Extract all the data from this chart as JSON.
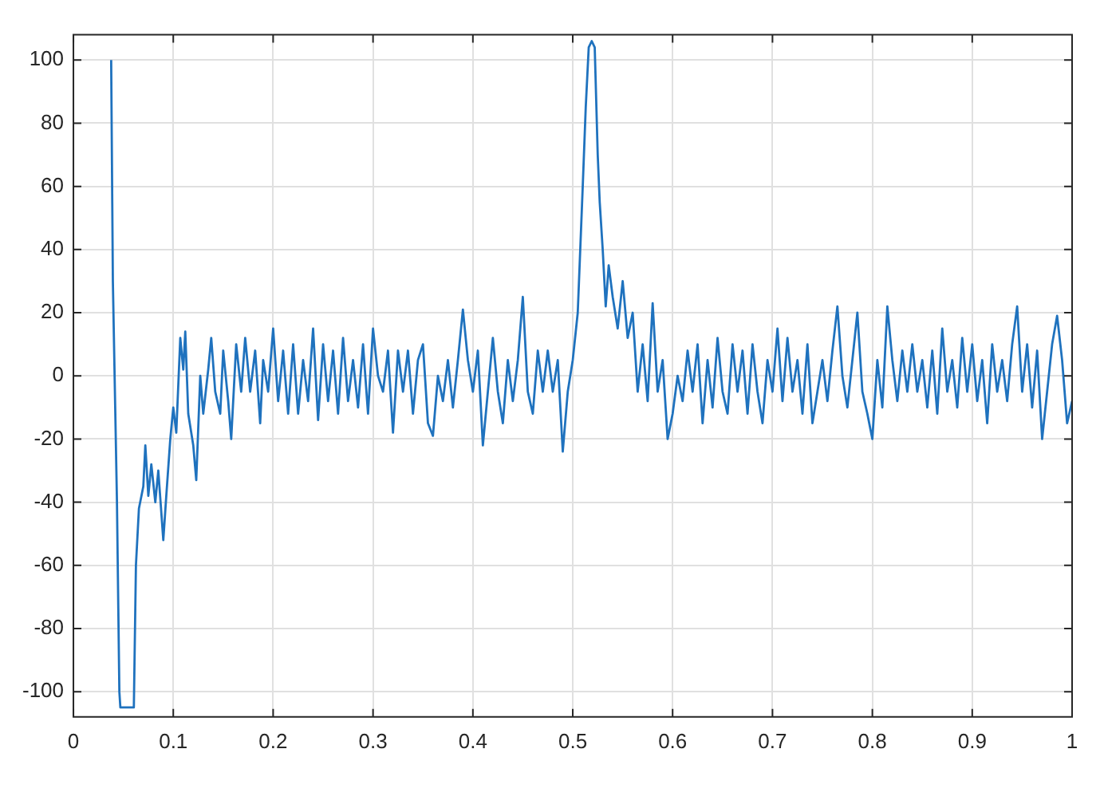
{
  "chart_data": {
    "type": "line",
    "x": [
      0.0378,
      0.0395,
      0.0436,
      0.046,
      0.047,
      0.0605,
      0.0626,
      0.0656,
      0.07,
      0.072,
      0.075,
      0.078,
      0.082,
      0.085,
      0.09,
      0.093,
      0.097,
      0.1,
      0.103,
      0.107,
      0.11,
      0.112,
      0.115,
      0.12,
      0.123,
      0.127,
      0.13,
      0.135,
      0.138,
      0.142,
      0.147,
      0.15,
      0.155,
      0.158,
      0.163,
      0.168,
      0.172,
      0.177,
      0.182,
      0.187,
      0.19,
      0.195,
      0.2,
      0.205,
      0.21,
      0.215,
      0.22,
      0.225,
      0.23,
      0.235,
      0.24,
      0.245,
      0.25,
      0.255,
      0.26,
      0.265,
      0.27,
      0.275,
      0.28,
      0.285,
      0.29,
      0.295,
      0.3,
      0.305,
      0.31,
      0.315,
      0.32,
      0.325,
      0.33,
      0.335,
      0.34,
      0.345,
      0.35,
      0.355,
      0.36,
      0.365,
      0.37,
      0.375,
      0.38,
      0.385,
      0.39,
      0.395,
      0.4,
      0.405,
      0.41,
      0.415,
      0.42,
      0.425,
      0.43,
      0.435,
      0.44,
      0.445,
      0.45,
      0.455,
      0.46,
      0.465,
      0.47,
      0.475,
      0.48,
      0.485,
      0.49,
      0.495,
      0.5,
      0.505,
      0.51,
      0.513,
      0.516,
      0.519,
      0.522,
      0.525,
      0.527,
      0.53,
      0.533,
      0.536,
      0.54,
      0.545,
      0.55,
      0.555,
      0.56,
      0.565,
      0.57,
      0.575,
      0.58,
      0.585,
      0.59,
      0.595,
      0.6,
      0.605,
      0.61,
      0.615,
      0.62,
      0.625,
      0.63,
      0.635,
      0.64,
      0.645,
      0.65,
      0.655,
      0.66,
      0.665,
      0.67,
      0.675,
      0.68,
      0.685,
      0.69,
      0.695,
      0.7,
      0.705,
      0.71,
      0.715,
      0.72,
      0.725,
      0.73,
      0.735,
      0.74,
      0.745,
      0.75,
      0.755,
      0.76,
      0.765,
      0.77,
      0.775,
      0.78,
      0.785,
      0.79,
      0.795,
      0.8,
      0.805,
      0.81,
      0.815,
      0.82,
      0.825,
      0.83,
      0.835,
      0.84,
      0.845,
      0.85,
      0.855,
      0.86,
      0.865,
      0.87,
      0.875,
      0.88,
      0.885,
      0.89,
      0.895,
      0.9,
      0.905,
      0.91,
      0.915,
      0.92,
      0.925,
      0.93,
      0.935,
      0.94,
      0.945,
      0.95,
      0.955,
      0.96,
      0.965,
      0.97,
      0.975,
      0.98,
      0.985,
      0.99,
      0.995,
      1.0
    ],
    "series": [
      {
        "color": "#1f72be",
        "values": [
          100,
          30,
          -40,
          -100,
          -105,
          -105,
          -60,
          -42,
          -35,
          -22,
          -38,
          -28,
          -40,
          -30,
          -52,
          -38,
          -20,
          -10,
          -18,
          12,
          2,
          14,
          -12,
          -22,
          -33,
          0,
          -12,
          2,
          12,
          -5,
          -12,
          8,
          -8,
          -20,
          10,
          -5,
          12,
          -5,
          8,
          -15,
          5,
          -5,
          15,
          -8,
          8,
          -12,
          10,
          -12,
          5,
          -8,
          15,
          -14,
          10,
          -8,
          8,
          -12,
          12,
          -8,
          5,
          -10,
          10,
          -12,
          15,
          0,
          -5,
          8,
          -18,
          8,
          -5,
          8,
          -12,
          5,
          10,
          -15,
          -19,
          0,
          -8,
          5,
          -10,
          5,
          21,
          5,
          -5,
          8,
          -22,
          -5,
          12,
          -5,
          -15,
          5,
          -8,
          5,
          25,
          -5,
          -12,
          8,
          -5,
          8,
          -5,
          5,
          -24,
          -5,
          5,
          20,
          60,
          85,
          104,
          106,
          104,
          70,
          55,
          40,
          22,
          35,
          25,
          15,
          30,
          12,
          20,
          -5,
          10,
          -8,
          23,
          -5,
          5,
          -20,
          -12,
          0,
          -8,
          8,
          -5,
          10,
          -15,
          5,
          -10,
          12,
          -5,
          -12,
          10,
          -5,
          8,
          -12,
          10,
          -5,
          -15,
          5,
          -5,
          15,
          -8,
          12,
          -5,
          5,
          -12,
          10,
          -15,
          -5,
          5,
          -8,
          8,
          22,
          0,
          -10,
          5,
          20,
          -5,
          -12,
          -20,
          5,
          -10,
          22,
          5,
          -8,
          8,
          -5,
          10,
          -5,
          5,
          -10,
          8,
          -12,
          15,
          -5,
          5,
          -10,
          12,
          -5,
          10,
          -8,
          5,
          -15,
          10,
          -5,
          5,
          -8,
          10,
          22,
          -5,
          10,
          -10,
          8,
          -20,
          -5,
          10,
          19,
          5,
          -15,
          -8
        ]
      }
    ],
    "xlim": [
      0,
      1
    ],
    "xticks": [
      0,
      0.1,
      0.2,
      0.3,
      0.4,
      0.5,
      0.6,
      0.7,
      0.8,
      0.9,
      1
    ],
    "ylim": [
      -108,
      108
    ],
    "yticks": [
      -100,
      -80,
      -60,
      -40,
      -20,
      0,
      20,
      40,
      60,
      80,
      100
    ],
    "grid": true,
    "legend": false,
    "marker": "none",
    "line_style": "solid"
  }
}
